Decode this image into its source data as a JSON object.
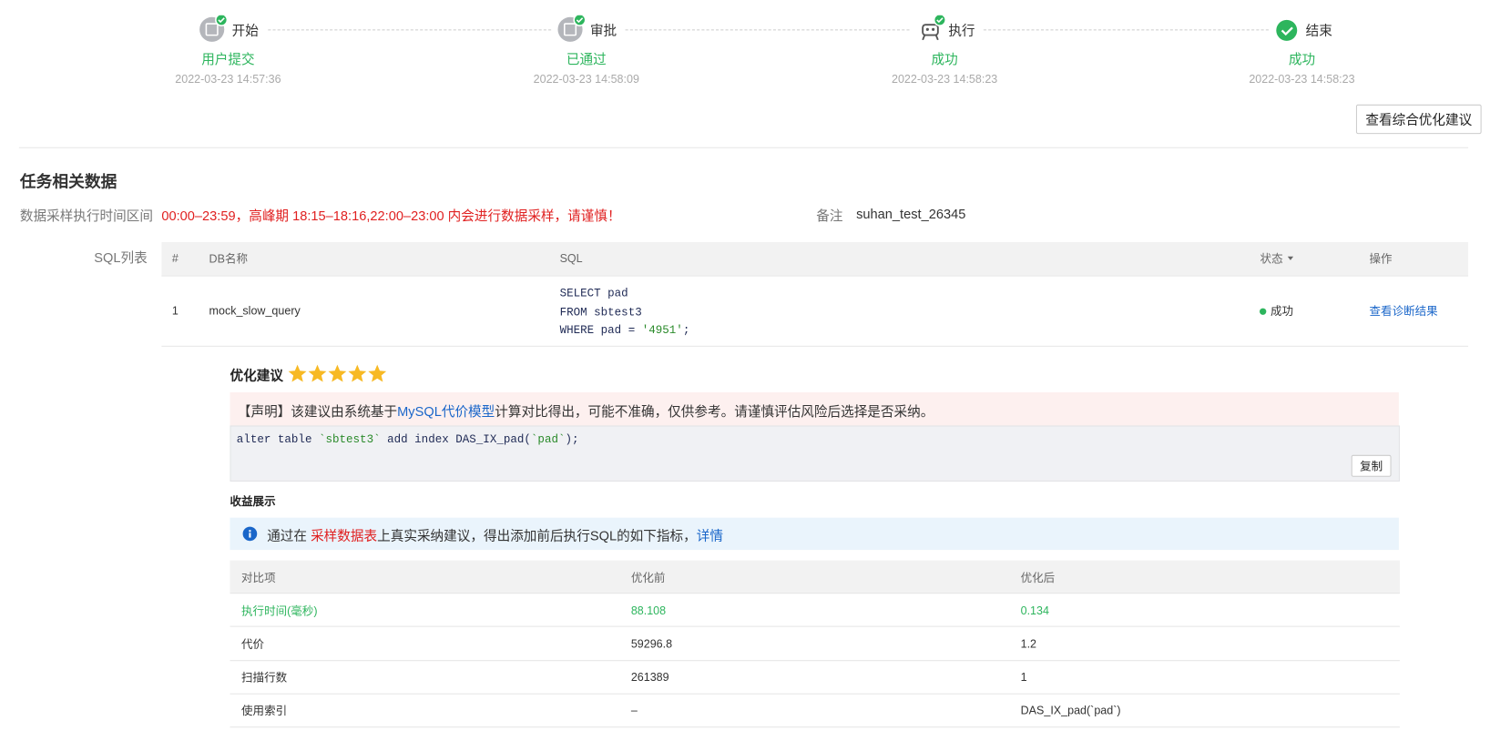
{
  "steps": [
    {
      "label": "开始",
      "status": "用户提交",
      "time": "2022-03-23 14:57:36"
    },
    {
      "label": "审批",
      "status": "已通过",
      "time": "2022-03-23 14:58:09"
    },
    {
      "label": "执行",
      "status": "成功",
      "time": "2022-03-23 14:58:23"
    },
    {
      "label": "结束",
      "status": "成功",
      "time": "2022-03-23 14:58:23"
    }
  ],
  "header_button": "查看综合优化建议",
  "section_title": "任务相关数据",
  "sampling": {
    "label": "数据采样执行时间区间",
    "value": "00:00–23:59，高峰期 18:15–18:16,22:00–23:00 内会进行数据采样，请谨慎！"
  },
  "remark": {
    "label": "备注",
    "value": "suhan_test_26345"
  },
  "sql_list": {
    "label": "SQL列表",
    "columns": [
      "#",
      "DB名称",
      "SQL",
      "状态",
      "操作"
    ],
    "rows": [
      {
        "index": "1",
        "db": "mock_slow_query",
        "sql": [
          [
            "SELECT pad"
          ],
          [
            "FROM sbtest3"
          ],
          [
            "WHERE pad = ",
            "'4951'",
            ";"
          ]
        ],
        "status": "成功",
        "action": "查看诊断结果"
      }
    ]
  },
  "advice": {
    "title": "优化建议",
    "rating": 5,
    "notice": {
      "prefix": "【声明】该建议由系统基于",
      "link": "MySQL代价模型",
      "suffix": "计算对比得出，可能不准确，仅供参考。请谨慎评估风险后选择是否采纳。"
    },
    "code": [
      "alter table ",
      "`sbtest3`",
      " add index DAS_IX_pad(",
      "`pad`",
      ");"
    ],
    "copy_button": "复制"
  },
  "benefit": {
    "title": "收益展示",
    "info": {
      "prefix": "通过在 ",
      "highlight": "采样数据表",
      "middle": "上真实采纳建议，得出添加前后执行SQL的如下指标，",
      "link": "详情"
    },
    "table": {
      "columns": [
        "对比项",
        "优化前",
        "优化后"
      ],
      "rows": [
        [
          "执行时间(毫秒)",
          "88.108",
          "0.134"
        ],
        [
          "代价",
          "59296.8",
          "1.2"
        ],
        [
          "扫描行数",
          "261389",
          "1"
        ],
        [
          "使用索引",
          "–",
          "DAS_IX_pad(`pad`)"
        ]
      ]
    }
  }
}
